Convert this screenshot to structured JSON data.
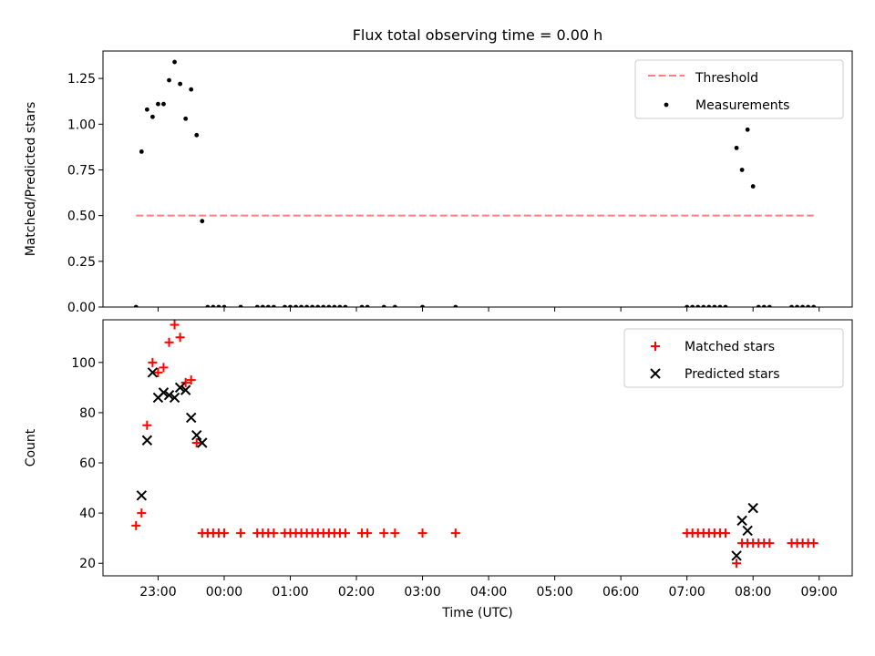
{
  "chart_data": [
    {
      "type": "scatter",
      "title": "Flux total observing time = 0.00 h",
      "xlabel": "",
      "ylabel": "Matched/Predicted stars",
      "xlim": [
        "22:10",
        "09:30"
      ],
      "ylim": [
        0,
        1.4
      ],
      "yticks": [
        0.0,
        0.25,
        0.5,
        0.75,
        1.0,
        1.25
      ],
      "ytick_labels": [
        "0.00",
        "0.25",
        "0.50",
        "0.75",
        "1.00",
        "1.25"
      ],
      "legend_position": "top-right",
      "series": [
        {
          "name": "Threshold",
          "kind": "line",
          "style": "dashed",
          "color": "#ff7f7f",
          "x": [
            "22:40",
            "08:55"
          ],
          "y": [
            0.5,
            0.5
          ]
        },
        {
          "name": "Measurements",
          "kind": "scatter",
          "marker": "dot",
          "color": "#000000",
          "points": [
            [
              "22:40",
              0.0
            ],
            [
              "22:45",
              0.85
            ],
            [
              "22:50",
              1.08
            ],
            [
              "22:55",
              1.04
            ],
            [
              "23:00",
              1.11
            ],
            [
              "23:05",
              1.11
            ],
            [
              "23:10",
              1.24
            ],
            [
              "23:15",
              1.34
            ],
            [
              "23:20",
              1.22
            ],
            [
              "23:25",
              1.03
            ],
            [
              "23:30",
              1.19
            ],
            [
              "23:35",
              0.94
            ],
            [
              "23:40",
              0.47
            ],
            [
              "23:45",
              0.0
            ],
            [
              "23:50",
              0.0
            ],
            [
              "23:55",
              0.0
            ],
            [
              "00:00",
              0.0
            ],
            [
              "00:15",
              0.0
            ],
            [
              "00:30",
              0.0
            ],
            [
              "00:35",
              0.0
            ],
            [
              "00:40",
              0.0
            ],
            [
              "00:45",
              0.0
            ],
            [
              "00:55",
              0.0
            ],
            [
              "01:00",
              0.0
            ],
            [
              "01:05",
              0.0
            ],
            [
              "01:10",
              0.0
            ],
            [
              "01:15",
              0.0
            ],
            [
              "01:20",
              0.0
            ],
            [
              "01:25",
              0.0
            ],
            [
              "01:30",
              0.0
            ],
            [
              "01:35",
              0.0
            ],
            [
              "01:40",
              0.0
            ],
            [
              "01:45",
              0.0
            ],
            [
              "01:50",
              0.0
            ],
            [
              "02:05",
              0.0
            ],
            [
              "02:10",
              0.0
            ],
            [
              "02:25",
              0.0
            ],
            [
              "02:35",
              0.0
            ],
            [
              "03:00",
              0.0
            ],
            [
              "03:30",
              0.0
            ],
            [
              "07:00",
              0.0
            ],
            [
              "07:05",
              0.0
            ],
            [
              "07:10",
              0.0
            ],
            [
              "07:15",
              0.0
            ],
            [
              "07:20",
              0.0
            ],
            [
              "07:25",
              0.0
            ],
            [
              "07:30",
              0.0
            ],
            [
              "07:35",
              0.0
            ],
            [
              "07:45",
              0.87
            ],
            [
              "07:50",
              0.75
            ],
            [
              "07:55",
              0.97
            ],
            [
              "08:00",
              0.66
            ],
            [
              "08:05",
              0.0
            ],
            [
              "08:10",
              0.0
            ],
            [
              "08:15",
              0.0
            ],
            [
              "08:35",
              0.0
            ],
            [
              "08:40",
              0.0
            ],
            [
              "08:45",
              0.0
            ],
            [
              "08:50",
              0.0
            ],
            [
              "08:55",
              0.0
            ]
          ]
        }
      ]
    },
    {
      "type": "scatter",
      "title": "",
      "xlabel": "Time (UTC)",
      "ylabel": "Count",
      "xlim": [
        "22:10",
        "09:30"
      ],
      "ylim": [
        15,
        117
      ],
      "yticks": [
        20,
        40,
        60,
        80,
        100
      ],
      "ytick_labels": [
        "20",
        "40",
        "60",
        "80",
        "100"
      ],
      "xticks": [
        "23:00",
        "00:00",
        "01:00",
        "02:00",
        "03:00",
        "04:00",
        "05:00",
        "06:00",
        "07:00",
        "08:00",
        "09:00"
      ],
      "legend_position": "top-right",
      "series": [
        {
          "name": "Matched stars",
          "kind": "scatter",
          "marker": "plus",
          "color": "#ff0000",
          "points": [
            [
              "22:40",
              35
            ],
            [
              "22:45",
              40
            ],
            [
              "22:50",
              75
            ],
            [
              "22:55",
              100
            ],
            [
              "23:00",
              96
            ],
            [
              "23:05",
              98
            ],
            [
              "23:10",
              108
            ],
            [
              "23:15",
              115
            ],
            [
              "23:20",
              110
            ],
            [
              "23:25",
              92
            ],
            [
              "23:30",
              93
            ],
            [
              "23:35",
              68
            ],
            [
              "23:40",
              32
            ],
            [
              "23:45",
              32
            ],
            [
              "23:50",
              32
            ],
            [
              "23:55",
              32
            ],
            [
              "00:00",
              32
            ],
            [
              "00:15",
              32
            ],
            [
              "00:30",
              32
            ],
            [
              "00:35",
              32
            ],
            [
              "00:40",
              32
            ],
            [
              "00:45",
              32
            ],
            [
              "00:55",
              32
            ],
            [
              "01:00",
              32
            ],
            [
              "01:05",
              32
            ],
            [
              "01:10",
              32
            ],
            [
              "01:15",
              32
            ],
            [
              "01:20",
              32
            ],
            [
              "01:25",
              32
            ],
            [
              "01:30",
              32
            ],
            [
              "01:35",
              32
            ],
            [
              "01:40",
              32
            ],
            [
              "01:45",
              32
            ],
            [
              "01:50",
              32
            ],
            [
              "02:05",
              32
            ],
            [
              "02:10",
              32
            ],
            [
              "02:25",
              32
            ],
            [
              "02:35",
              32
            ],
            [
              "03:00",
              32
            ],
            [
              "03:30",
              32
            ],
            [
              "07:00",
              32
            ],
            [
              "07:05",
              32
            ],
            [
              "07:10",
              32
            ],
            [
              "07:15",
              32
            ],
            [
              "07:20",
              32
            ],
            [
              "07:25",
              32
            ],
            [
              "07:30",
              32
            ],
            [
              "07:35",
              32
            ],
            [
              "07:45",
              20
            ],
            [
              "07:50",
              28
            ],
            [
              "07:55",
              28
            ],
            [
              "08:00",
              28
            ],
            [
              "08:05",
              28
            ],
            [
              "08:10",
              28
            ],
            [
              "08:15",
              28
            ],
            [
              "08:35",
              28
            ],
            [
              "08:40",
              28
            ],
            [
              "08:45",
              28
            ],
            [
              "08:50",
              28
            ],
            [
              "08:55",
              28
            ]
          ]
        },
        {
          "name": "Predicted stars",
          "kind": "scatter",
          "marker": "x",
          "color": "#000000",
          "points": [
            [
              "22:45",
              47
            ],
            [
              "22:50",
              69
            ],
            [
              "22:55",
              96
            ],
            [
              "23:00",
              86
            ],
            [
              "23:05",
              88
            ],
            [
              "23:10",
              87
            ],
            [
              "23:15",
              86
            ],
            [
              "23:20",
              90
            ],
            [
              "23:25",
              89
            ],
            [
              "23:30",
              78
            ],
            [
              "23:35",
              71
            ],
            [
              "23:40",
              68
            ],
            [
              "07:45",
              23
            ],
            [
              "07:50",
              37
            ],
            [
              "07:55",
              33
            ],
            [
              "08:00",
              42
            ]
          ]
        }
      ]
    }
  ]
}
